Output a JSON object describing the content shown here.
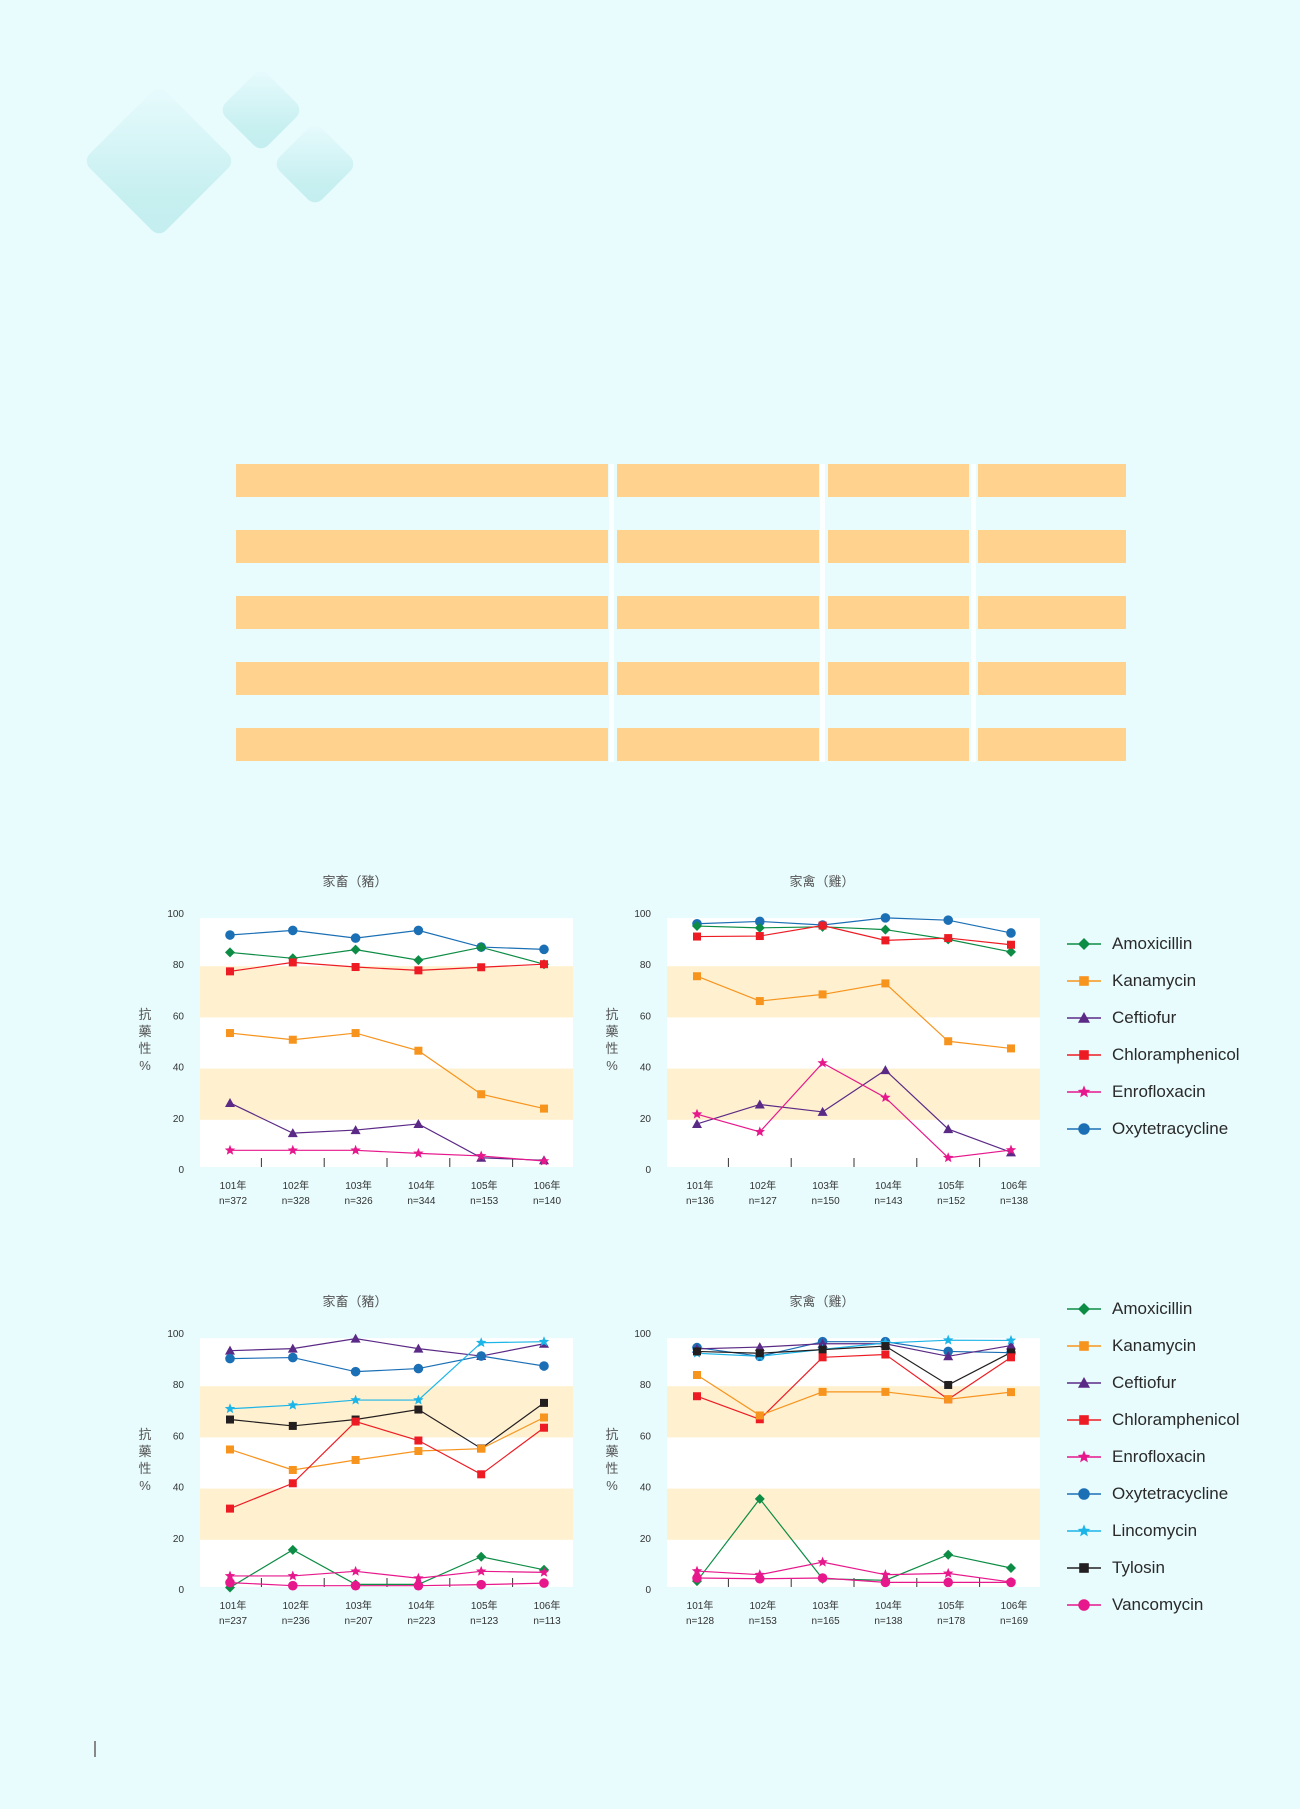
{
  "decor": {
    "accent": "#c3eeef"
  },
  "table": {
    "rows": 5,
    "columns": 4,
    "fill_color": "#ffd38e",
    "cells": [
      [
        "",
        "",
        "",
        ""
      ],
      [
        "",
        "",
        "",
        ""
      ],
      [
        "",
        "",
        "",
        ""
      ],
      [
        "",
        "",
        "",
        ""
      ],
      [
        "",
        "",
        "",
        ""
      ]
    ]
  },
  "colors": {
    "Amoxicillin": "#0d8c45",
    "Kanamycin": "#f7941d",
    "Ceftiofur": "#5b2a86",
    "Chloramphenicol": "#ed1c24",
    "Enrofloxacin": "#e6188c",
    "Oxytetracycline": "#1b6fb5",
    "Lincomycin": "#1cb5e8",
    "Tylosin": "#231f20",
    "Vancomycin": "#e6188c"
  },
  "markers": {
    "Amoxicillin": "diamond",
    "Kanamycin": "square",
    "Ceftiofur": "triangle",
    "Chloramphenicol": "square",
    "Enrofloxacin": "star",
    "Oxytetracycline": "circle",
    "Lincomycin": "star",
    "Tylosin": "square",
    "Vancomycin": "circle"
  },
  "legends": [
    {
      "items": [
        "Amoxicillin",
        "Kanamycin",
        "Ceftiofur",
        "Chloramphenicol",
        "Enrofloxacin",
        "Oxytetracycline"
      ]
    },
    {
      "items": [
        "Amoxicillin",
        "Kanamycin",
        "Ceftiofur",
        "Chloramphenicol",
        "Enrofloxacin",
        "Oxytetracycline",
        "Lincomycin",
        "Tylosin",
        "Vancomycin"
      ]
    }
  ],
  "chart_data": [
    {
      "type": "line",
      "title": "家畜（豬）",
      "ylabel": "抗藥性%",
      "ylabel_chars": [
        "抗",
        "藥",
        "性",
        "%"
      ],
      "ylim": [
        0,
        100
      ],
      "yticks": [
        0,
        20,
        40,
        60,
        80,
        100
      ],
      "bands": [
        [
          60,
          80
        ],
        [
          20,
          40
        ]
      ],
      "categories": [
        "101年",
        "102年",
        "103年",
        "104年",
        "105年",
        "106年"
      ],
      "n": [
        "n=372",
        "n=328",
        "n=326",
        "n=344",
        "n=153",
        "n=140"
      ],
      "series": [
        {
          "name": "Oxytetracycline",
          "values": [
            91.4,
            93.2,
            90.2,
            93.2,
            86.7,
            85.8
          ]
        },
        {
          "name": "Amoxicillin",
          "values": [
            84.6,
            82.3,
            85.7,
            81.6,
            86.6,
            80.0
          ]
        },
        {
          "name": "Chloramphenicol",
          "values": [
            77.2,
            80.7,
            78.9,
            77.6,
            78.8,
            80.0
          ]
        },
        {
          "name": "Kanamycin",
          "values": [
            53.1,
            50.5,
            53.1,
            46.2,
            29.2,
            23.6
          ]
        },
        {
          "name": "Ceftiofur",
          "values": [
            25.8,
            14.0,
            15.2,
            17.6,
            4.4,
            3.4
          ]
        },
        {
          "name": "Enrofloxacin",
          "values": [
            7.3,
            7.3,
            7.3,
            6.1,
            5.1,
            3.1
          ]
        }
      ]
    },
    {
      "type": "line",
      "title": "家禽（雞）",
      "ylabel": "抗藥性%",
      "ylabel_chars": [
        "抗",
        "藥",
        "性",
        "%"
      ],
      "ylim": [
        0,
        100
      ],
      "yticks": [
        0,
        20,
        40,
        60,
        80,
        100
      ],
      "bands": [
        [
          60,
          80
        ],
        [
          20,
          40
        ]
      ],
      "categories": [
        "101年",
        "102年",
        "103年",
        "104年",
        "105年",
        "106年"
      ],
      "n": [
        "n=136",
        "n=127",
        "n=150",
        "n=143",
        "n=152",
        "n=138"
      ],
      "series": [
        {
          "name": "Oxytetracycline",
          "values": [
            95.8,
            96.7,
            95.3,
            98.1,
            97.2,
            92.2
          ]
        },
        {
          "name": "Amoxicillin",
          "values": [
            94.9,
            94.2,
            94.6,
            93.5,
            89.7,
            84.8
          ]
        },
        {
          "name": "Chloramphenicol",
          "values": [
            90.8,
            91.0,
            95.1,
            89.3,
            90.2,
            87.6
          ]
        },
        {
          "name": "Kanamycin",
          "values": [
            75.3,
            65.6,
            68.2,
            72.5,
            49.9,
            47.1
          ]
        },
        {
          "name": "Ceftiofur",
          "values": [
            17.6,
            25.2,
            22.3,
            38.6,
            15.6,
            6.5
          ]
        },
        {
          "name": "Enrofloxacin",
          "values": [
            21.4,
            14.5,
            41.4,
            27.9,
            4.4,
            7.4
          ]
        }
      ]
    },
    {
      "type": "line",
      "title": "家畜（豬）",
      "ylabel": "抗藥性%",
      "ylabel_chars": [
        "抗",
        "藥",
        "性",
        "%"
      ],
      "ylim": [
        0,
        100
      ],
      "yticks": [
        0,
        20,
        40,
        60,
        80,
        100
      ],
      "bands": [
        [
          60,
          80
        ],
        [
          20,
          40
        ]
      ],
      "categories": [
        "101年",
        "102年",
        "103年",
        "104年",
        "105年",
        "106年"
      ],
      "n": [
        "n=237",
        "n=236",
        "n=207",
        "n=223",
        "n=123",
        "n=113"
      ],
      "series": [
        {
          "name": "Ceftiofur",
          "values": [
            93.1,
            93.9,
            97.8,
            93.9,
            91.0,
            95.8
          ]
        },
        {
          "name": "Oxytetracycline",
          "values": [
            90.0,
            90.4,
            84.9,
            86.1,
            91.0,
            87.1
          ]
        },
        {
          "name": "Lincomycin",
          "values": [
            70.4,
            71.8,
            73.8,
            73.8,
            96.2,
            96.6
          ]
        },
        {
          "name": "Tylosin",
          "values": [
            66.2,
            63.7,
            66.2,
            70.1,
            54.9,
            72.7
          ]
        },
        {
          "name": "Kanamycin",
          "values": [
            54.5,
            46.5,
            50.4,
            53.9,
            54.8,
            67.0
          ]
        },
        {
          "name": "Chloramphenicol",
          "values": [
            31.4,
            41.3,
            65.4,
            58.0,
            44.8,
            63.0
          ]
        },
        {
          "name": "Amoxicillin",
          "values": [
            0.6,
            15.3,
            1.8,
            1.8,
            12.6,
            7.5
          ]
        },
        {
          "name": "Enrofloxacin",
          "values": [
            5.1,
            5.1,
            6.9,
            4.2,
            6.9,
            6.5
          ]
        },
        {
          "name": "Vancomycin",
          "values": [
            2.5,
            1.3,
            1.3,
            1.3,
            1.7,
            2.3
          ]
        }
      ]
    },
    {
      "type": "line",
      "title": "家禽（雞）",
      "ylabel": "抗藥性%",
      "ylabel_chars": [
        "抗",
        "藥",
        "性",
        "%"
      ],
      "ylim": [
        0,
        100
      ],
      "yticks": [
        0,
        20,
        40,
        60,
        80,
        100
      ],
      "bands": [
        [
          60,
          80
        ],
        [
          20,
          40
        ]
      ],
      "categories": [
        "101年",
        "102年",
        "103年",
        "104年",
        "105年",
        "106年"
      ],
      "n": [
        "n=128",
        "n=153",
        "n=165",
        "n=138",
        "n=178",
        "n=169"
      ],
      "series": [
        {
          "name": "Oxytetracycline",
          "values": [
            94.3,
            90.9,
            96.6,
            96.6,
            92.8,
            92.3
          ]
        },
        {
          "name": "Ceftiofur",
          "values": [
            93.8,
            94.5,
            95.8,
            95.8,
            90.9,
            95.1
          ]
        },
        {
          "name": "Lincomycin",
          "values": [
            92.1,
            90.9,
            93.6,
            96.1,
            97.2,
            97.1
          ]
        },
        {
          "name": "Tylosin",
          "values": [
            92.8,
            92.1,
            93.5,
            94.9,
            79.7,
            92.4
          ]
        },
        {
          "name": "Chloramphenicol",
          "values": [
            75.3,
            66.3,
            90.5,
            91.6,
            74.1,
            90.5
          ]
        },
        {
          "name": "Kanamycin",
          "values": [
            83.6,
            67.8,
            77.0,
            77.0,
            74.1,
            76.9
          ]
        },
        {
          "name": "Amoxicillin",
          "values": [
            3.1,
            35.2,
            4.0,
            3.4,
            13.4,
            8.2
          ]
        },
        {
          "name": "Enrofloxacin",
          "values": [
            7.0,
            5.6,
            10.5,
            5.6,
            6.1,
            2.7
          ]
        },
        {
          "name": "Vancomycin",
          "values": [
            4.3,
            4.0,
            4.3,
            2.6,
            2.6,
            2.6
          ]
        }
      ]
    }
  ]
}
